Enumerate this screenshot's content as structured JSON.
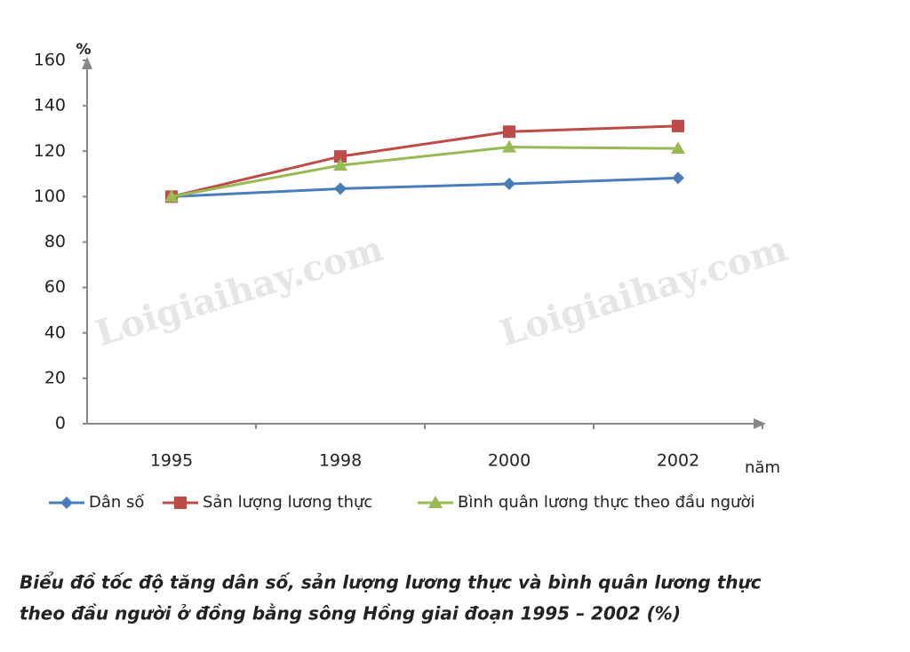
{
  "chart_data": {
    "type": "line",
    "watermark": "Loigiaihay.com",
    "y_axis_label": "%",
    "x_axis_label": "năm",
    "categories": [
      "1995",
      "1998",
      "2000",
      "2002"
    ],
    "series": [
      {
        "name": "Dân số",
        "color": "#4a7ebb",
        "marker": "diamond",
        "values": [
          100,
          103.5,
          105.6,
          108.2
        ]
      },
      {
        "name": "Sản lượng lương thực",
        "color": "#be4b48",
        "marker": "square",
        "values": [
          100,
          117.7,
          128.6,
          131.1
        ]
      },
      {
        "name": "Bình quân lương thực theo đầu người",
        "color": "#98b954",
        "marker": "triangle",
        "values": [
          100,
          113.8,
          121.8,
          121.2
        ]
      }
    ],
    "ylim": [
      0,
      160
    ],
    "yticks": [
      0,
      20,
      40,
      60,
      80,
      100,
      120,
      140,
      160
    ],
    "grid": false,
    "legend": "bottom",
    "caption": [
      "Biểu đồ tốc độ tăng dân số, sản lượng lương thực và bình quân lương thực",
      "theo đầu người ở đồng bằng sông Hồng giai đoạn 1995 – 2002 (%)"
    ]
  }
}
